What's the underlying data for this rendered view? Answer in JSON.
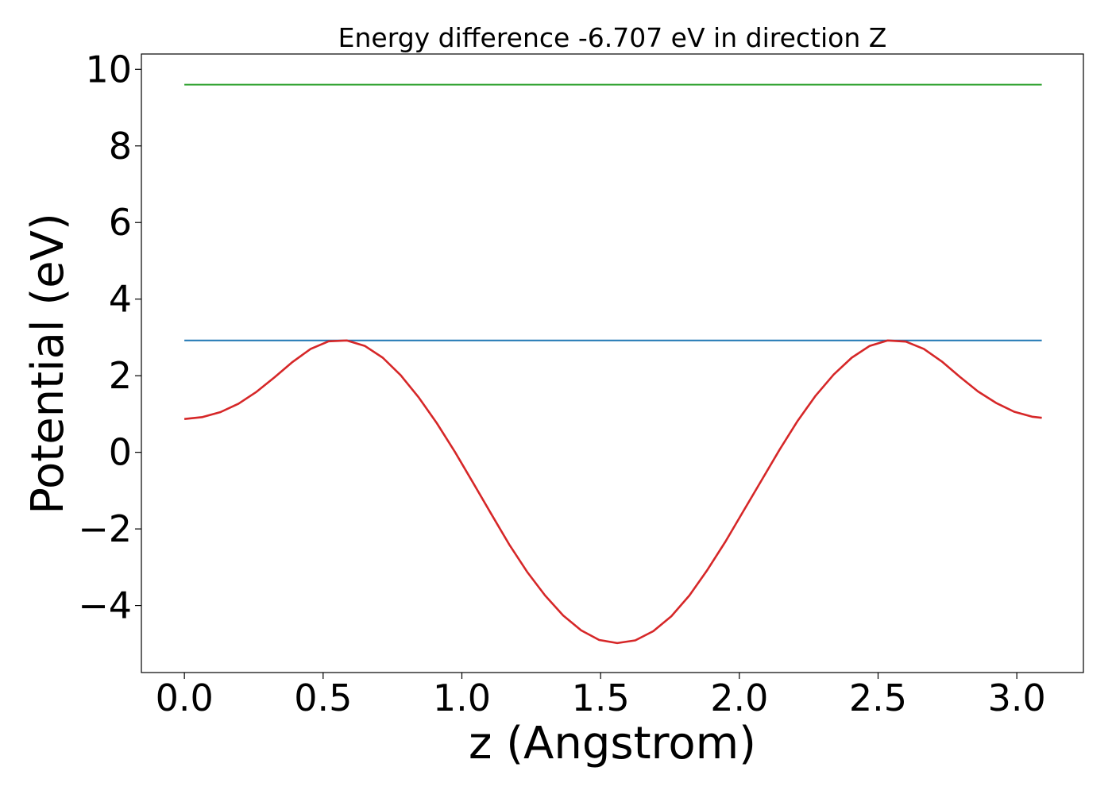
{
  "chart_data": {
    "type": "line",
    "title": "Energy difference -6.707 eV in direction Z",
    "xlabel": "z (Angstrom)",
    "ylabel": "Potential (eV)",
    "xlim": [
      -0.155,
      3.24
    ],
    "ylim": [
      -5.75,
      10.4
    ],
    "xticks": [
      0.0,
      0.5,
      1.0,
      1.5,
      2.0,
      2.5,
      3.0
    ],
    "xtick_labels": [
      "0.0",
      "0.5",
      "1.0",
      "1.5",
      "2.0",
      "2.5",
      "3.0"
    ],
    "yticks": [
      -4,
      -2,
      0,
      2,
      4,
      6,
      8,
      10
    ],
    "ytick_labels": [
      "−4",
      "−2",
      "0",
      "2",
      "4",
      "6",
      "8",
      "10"
    ],
    "grid": false,
    "series": [
      {
        "color": "#2ca02c",
        "x": [
          0.0,
          3.09
        ],
        "y": [
          9.6,
          9.6
        ]
      },
      {
        "color": "#1f77b4",
        "x": [
          0.0,
          3.09
        ],
        "y": [
          2.92,
          2.92
        ]
      },
      {
        "color": "#d62728",
        "x": [
          0.0,
          0.065,
          0.13,
          0.195,
          0.26,
          0.325,
          0.39,
          0.455,
          0.52,
          0.585,
          0.65,
          0.715,
          0.78,
          0.845,
          0.91,
          0.975,
          1.04,
          1.105,
          1.17,
          1.235,
          1.3,
          1.365,
          1.43,
          1.495,
          1.56,
          1.625,
          1.69,
          1.755,
          1.82,
          1.885,
          1.95,
          2.015,
          2.08,
          2.145,
          2.21,
          2.275,
          2.34,
          2.405,
          2.47,
          2.535,
          2.6,
          2.665,
          2.73,
          2.795,
          2.86,
          2.925,
          2.99,
          3.055,
          3.09
        ],
        "y": [
          0.87,
          0.92,
          1.05,
          1.27,
          1.58,
          1.96,
          2.36,
          2.7,
          2.9,
          2.92,
          2.78,
          2.47,
          2.01,
          1.43,
          0.76,
          0.01,
          -0.79,
          -1.6,
          -2.4,
          -3.12,
          -3.74,
          -4.26,
          -4.65,
          -4.9,
          -4.98,
          -4.91,
          -4.67,
          -4.28,
          -3.74,
          -3.07,
          -2.33,
          -1.53,
          -0.73,
          0.07,
          0.82,
          1.48,
          2.03,
          2.47,
          2.78,
          2.92,
          2.89,
          2.7,
          2.37,
          1.97,
          1.59,
          1.29,
          1.06,
          0.93,
          0.9
        ]
      }
    ]
  }
}
